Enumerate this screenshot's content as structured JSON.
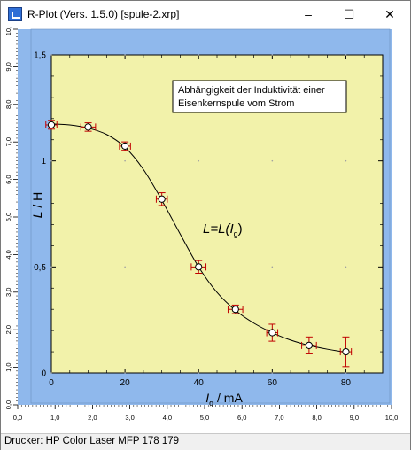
{
  "window": {
    "title": "R-Plot (Vers. 1.5.0) [spule-2.xrp]",
    "minimize_glyph": "–",
    "maximize_glyph": "☐",
    "close_glyph": "✕"
  },
  "status": {
    "printer": "Drucker: HP Color Laser MFP 178 179"
  },
  "page_ruler": {
    "x_ticks": [
      "0,0",
      "1,0",
      "2,0",
      "3,0",
      "4,0",
      "5,0",
      "6,0",
      "7,0",
      "8,0",
      "9,0",
      "10,0"
    ],
    "y_ticks": [
      "0,0",
      "1,0",
      "2,0",
      "3,0",
      "4,0",
      "5,0",
      "6,0",
      "7,0",
      "8,0",
      "9,0",
      "10,0"
    ]
  },
  "colors": {
    "page_bg": "#8fb8ec",
    "plot_bg": "#f2f2aa",
    "curve": "#000000",
    "error_bars": "#c00000",
    "grid": "#a0a0a0"
  },
  "chart_data": {
    "type": "scatter",
    "annotation": "Abhängigkeit der Induktivität einer Eisenkernspule vom Strom",
    "annotation_lines": [
      "Abhängigkeit der Induktivität einer",
      "Eisenkernspule vom Strom"
    ],
    "formula": {
      "left": "L=L(",
      "var": "I",
      "sub": "g",
      "right": ")"
    },
    "xlabel": {
      "var": "I",
      "sub": "g",
      "unit": " / mA"
    },
    "ylabel": {
      "var": "L",
      "unit": " / H"
    },
    "xlim": [
      0,
      90
    ],
    "ylim": [
      0,
      1.5
    ],
    "x_tick_values": [
      0,
      20,
      40,
      60,
      80
    ],
    "x_tick_labels": [
      "0",
      "20",
      "40",
      "60",
      "80"
    ],
    "y_tick_values": [
      0,
      0.5,
      1,
      1.5
    ],
    "y_tick_labels": [
      "0",
      "0,5",
      "1",
      "1,5"
    ],
    "grid": true,
    "points": [
      {
        "x": 0,
        "y": 1.17,
        "xerr": 1.5,
        "yerr": 0.02
      },
      {
        "x": 10,
        "y": 1.16,
        "xerr": 2,
        "yerr": 0.02
      },
      {
        "x": 20,
        "y": 1.07,
        "xerr": 1.5,
        "yerr": 0.02
      },
      {
        "x": 30,
        "y": 0.82,
        "xerr": 1.5,
        "yerr": 0.03
      },
      {
        "x": 40,
        "y": 0.5,
        "xerr": 2,
        "yerr": 0.03
      },
      {
        "x": 50,
        "y": 0.3,
        "xerr": 2,
        "yerr": 0.02
      },
      {
        "x": 60,
        "y": 0.19,
        "xerr": 1.5,
        "yerr": 0.04
      },
      {
        "x": 70,
        "y": 0.13,
        "xerr": 2,
        "yerr": 0.04
      },
      {
        "x": 80,
        "y": 0.1,
        "xerr": 1.5,
        "yerr": 0.07
      }
    ],
    "fit_curve": [
      [
        0,
        1.175
      ],
      [
        5,
        1.17
      ],
      [
        10,
        1.155
      ],
      [
        15,
        1.125
      ],
      [
        20,
        1.065
      ],
      [
        25,
        0.96
      ],
      [
        30,
        0.815
      ],
      [
        35,
        0.655
      ],
      [
        40,
        0.5
      ],
      [
        45,
        0.38
      ],
      [
        50,
        0.295
      ],
      [
        55,
        0.235
      ],
      [
        60,
        0.19
      ],
      [
        65,
        0.155
      ],
      [
        70,
        0.13
      ],
      [
        75,
        0.112
      ],
      [
        80,
        0.098
      ]
    ]
  }
}
